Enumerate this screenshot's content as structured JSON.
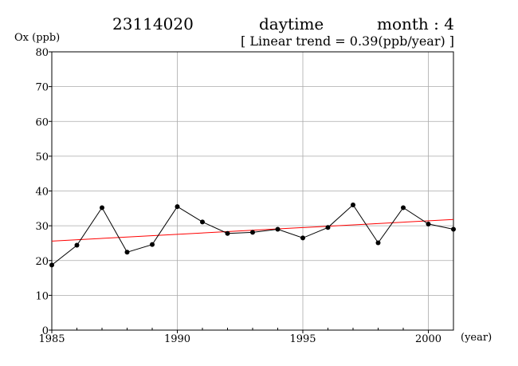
{
  "header": {
    "station": "23114020",
    "period": "daytime",
    "month": "month : 4",
    "trend": "[ Linear trend = 0.39(ppb/year) ]"
  },
  "colors": {
    "series": "#000000",
    "trend": "#ff0000",
    "grid": "#aaaaaa"
  },
  "chart_data": {
    "type": "line",
    "ylabel": "Ox (ppb)",
    "xlabel": "(year)",
    "xlim": [
      1985,
      2001
    ],
    "ylim": [
      0,
      80
    ],
    "grid": true,
    "x_ticks": [
      1985,
      1990,
      1995,
      2000
    ],
    "y_ticks": [
      0,
      10,
      20,
      30,
      40,
      50,
      60,
      70,
      80
    ],
    "series": [
      {
        "x": [
          1985,
          1986,
          1987,
          1988,
          1989,
          1990,
          1991,
          1992,
          1993,
          1994,
          1995,
          1996,
          1997,
          1998,
          1999,
          2000,
          2001
        ],
        "values": [
          18.7,
          24.4,
          35.2,
          22.4,
          24.6,
          35.5,
          31.1,
          27.8,
          28.1,
          29.0,
          26.5,
          29.5,
          36.0,
          25.1,
          35.2,
          30.5,
          29.0
        ]
      }
    ],
    "trend": {
      "x": [
        1985,
        2001
      ],
      "values": [
        25.6,
        31.8
      ]
    }
  }
}
